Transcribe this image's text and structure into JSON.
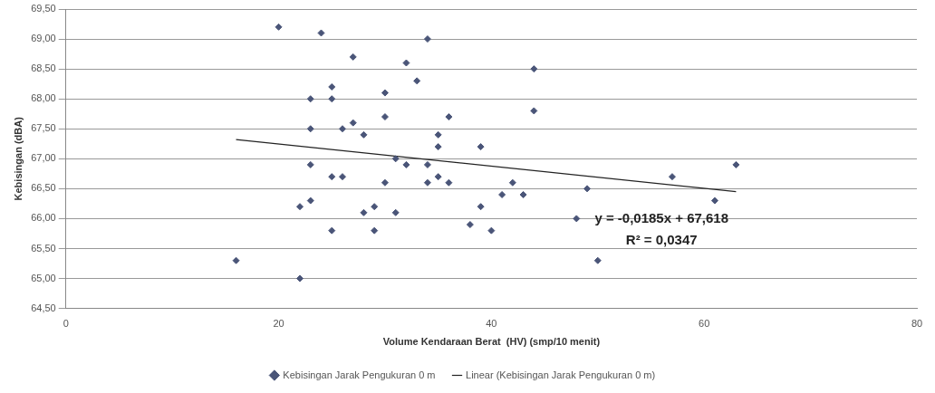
{
  "chart_data": {
    "type": "scatter",
    "xlabel": "Volume Kendaraan Berat  (HV) (smp/10 menit)",
    "ylabel": "Kebisingan (dBA)",
    "xlim": [
      0,
      80
    ],
    "xticks": [
      0,
      20,
      40,
      60,
      80
    ],
    "ylim": [
      64.5,
      69.5
    ],
    "yticks": [
      {
        "value": 64.5,
        "label": "64,50"
      },
      {
        "value": 65,
        "label": "65,00"
      },
      {
        "value": 65.5,
        "label": "65,50"
      },
      {
        "value": 66,
        "label": "66,00"
      },
      {
        "value": 66.5,
        "label": "66,50"
      },
      {
        "value": 67,
        "label": "67,00"
      },
      {
        "value": 67.5,
        "label": "67,50"
      },
      {
        "value": 68,
        "label": "68,00"
      },
      {
        "value": 68.5,
        "label": "68,50"
      },
      {
        "value": 69,
        "label": "69,00"
      },
      {
        "value": 69.5,
        "label": "69,50"
      }
    ],
    "grid": "y",
    "legend": "bottom",
    "series": [
      {
        "name": "Kebisingan Jarak Pengukuran 0 m",
        "marker": "diamond",
        "color": "#4a5578",
        "x": [
          20,
          24,
          34,
          27,
          32,
          33,
          25,
          23,
          25,
          30,
          30,
          36,
          27,
          23,
          26,
          28,
          35,
          35,
          23,
          31,
          32,
          34,
          25,
          26,
          35,
          30,
          34,
          36,
          22,
          23,
          28,
          29,
          31,
          25,
          29,
          16,
          22,
          44,
          44,
          39,
          42,
          41,
          43,
          39,
          38,
          40,
          49,
          57,
          63,
          48,
          50,
          61
        ],
        "values": [
          69.2,
          69.1,
          69.0,
          68.7,
          68.6,
          68.3,
          68.2,
          68.0,
          68.0,
          68.1,
          67.7,
          67.7,
          67.6,
          67.5,
          67.5,
          67.4,
          67.4,
          67.2,
          66.9,
          67.0,
          66.9,
          66.9,
          66.7,
          66.7,
          66.7,
          66.6,
          66.6,
          66.6,
          66.2,
          66.3,
          66.1,
          66.2,
          66.1,
          65.8,
          65.8,
          65.3,
          65.0,
          68.5,
          67.8,
          67.2,
          66.6,
          66.4,
          66.4,
          66.2,
          65.9,
          65.8,
          66.5,
          66.7,
          66.9,
          66.0,
          65.3,
          66.3
        ]
      },
      {
        "name": "Linear (Kebisingan Jarak Pengukuran 0 m)",
        "type": "line",
        "marker": "none",
        "color": "#222222",
        "x": [
          16,
          63
        ],
        "values": [
          67.32,
          66.45
        ]
      }
    ],
    "annotations": [
      "y = -0,0185x + 67,618",
      "R² = 0,0347"
    ]
  }
}
